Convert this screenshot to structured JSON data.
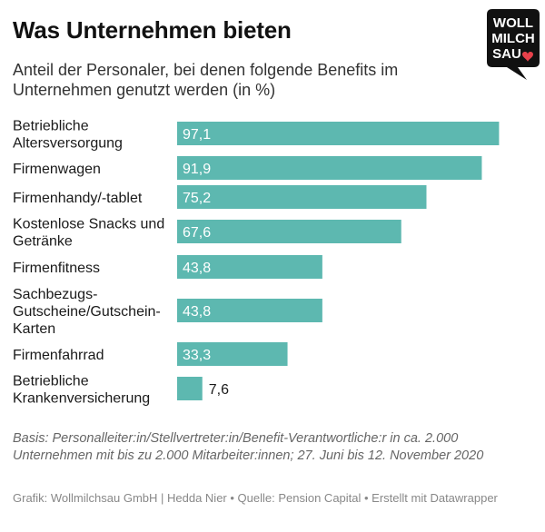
{
  "header": {
    "title": "Was Unternehmen bieten",
    "subtitle": "Anteil der Personaler, bei denen folgende Benefits im Unternehmen genutzt werden (in %)"
  },
  "logo": {
    "line1": "WOLL",
    "line2": "MILCH",
    "line3": "SAU",
    "icon": "heart-icon"
  },
  "chart_data": {
    "type": "bar",
    "orientation": "horizontal",
    "categories": [
      [
        "Betriebliche",
        "Altersversorgung"
      ],
      [
        "Firmenwagen"
      ],
      [
        "Firmenhandy/-tablet"
      ],
      [
        "Kostenlose Snacks und",
        "Getränke"
      ],
      [
        "Firmenfitness"
      ],
      [
        "Sachbezugs-",
        "Gutscheine/Gutschein-",
        "Karten"
      ],
      [
        "Firmenfahrrad"
      ],
      [
        "Betriebliche",
        "Krankenversicherung"
      ]
    ],
    "values": [
      97.1,
      91.9,
      75.2,
      67.6,
      43.8,
      43.8,
      33.3,
      7.6
    ],
    "value_labels": [
      "97,1",
      "91,9",
      "75,2",
      "67,6",
      "43,8",
      "43,8",
      "33,3",
      "7,6"
    ],
    "xlim": [
      0,
      100
    ],
    "grid": false,
    "bar_color": "#5db8b0"
  },
  "footer": {
    "notes": "Basis: Personalleiter:in/Stellvertreter:in/Benefit-Verantwortliche:r in ca. 2.000 Unternehmen mit bis zu 2.000 Mitarbeiter:innen; 27. Juni bis 12. November 2020",
    "credit": "Grafik: Wollmilchsau GmbH | Hedda Nier • Quelle: Pension Capital • Erstellt mit Datawrapper"
  },
  "colors": {
    "accent": "#5db8b0",
    "logo_bg": "#111111",
    "heart": "#e8414b"
  }
}
